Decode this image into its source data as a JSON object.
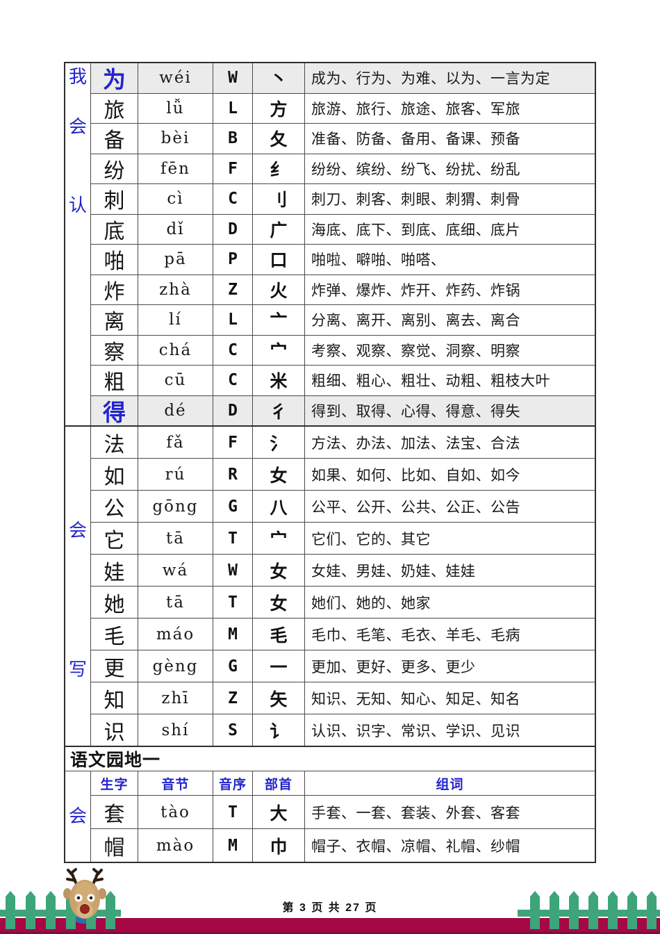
{
  "page": {
    "footer_text": "第 3 页 共 27 页"
  },
  "colors": {
    "accent_blue": "#2323CD",
    "highlight_row_bg": "#EBEBEB",
    "bottom_bar_crimson": "#A60845",
    "fence_green": "#3EA47A"
  },
  "table": {
    "columns": [
      "生字",
      "音节",
      "音序",
      "部首",
      "组词"
    ],
    "sections": [
      {
        "label": "我会认",
        "label_chars": [
          "我",
          "会",
          "认"
        ],
        "rows": [
          {
            "char": "为",
            "pinyin": "wéi",
            "initial": "W",
            "radical": "丶",
            "words": "成为、行为、为难、以为、一言为定",
            "hl": true
          },
          {
            "char": "旅",
            "pinyin": "lǚ",
            "initial": "L",
            "radical": "方",
            "words": "旅游、旅行、旅途、旅客、军旅"
          },
          {
            "char": "备",
            "pinyin": "bèi",
            "initial": "B",
            "radical": "夂",
            "words": "准备、防备、备用、备课、预备"
          },
          {
            "char": "纷",
            "pinyin": "fēn",
            "initial": "F",
            "radical": "纟",
            "words": "纷纷、缤纷、纷飞、纷扰、纷乱"
          },
          {
            "char": "刺",
            "pinyin": "cì",
            "initial": "C",
            "radical": "刂",
            "words": "刺刀、刺客、刺眼、刺猬、刺骨"
          },
          {
            "char": "底",
            "pinyin": "dǐ",
            "initial": "D",
            "radical": "广",
            "words": "海底、底下、到底、底细、底片"
          },
          {
            "char": "啪",
            "pinyin": "pā",
            "initial": "P",
            "radical": "口",
            "words": "啪啦、噼啪、啪嗒、"
          },
          {
            "char": "炸",
            "pinyin": "zhà",
            "initial": "Z",
            "radical": "火",
            "words": "炸弹、爆炸、炸开、炸药、炸锅"
          },
          {
            "char": "离",
            "pinyin": "lí",
            "initial": "L",
            "radical": "亠",
            "words": "分离、离开、离别、离去、离合"
          },
          {
            "char": "察",
            "pinyin": "chá",
            "initial": "C",
            "radical": "宀",
            "words": "考察、观察、察觉、洞察、明察"
          },
          {
            "char": "粗",
            "pinyin": "cū",
            "initial": "C",
            "radical": "米",
            "words": "粗细、粗心、粗壮、动粗、粗枝大叶"
          },
          {
            "char": "得",
            "pinyin": "dé",
            "initial": "D",
            "radical": "彳",
            "words": "得到、取得、心得、得意、得失",
            "hl": true
          }
        ]
      },
      {
        "label": "会写",
        "label_chars": [
          "会",
          "写"
        ],
        "rows": [
          {
            "char": "法",
            "pinyin": "fǎ",
            "initial": "F",
            "radical": "氵",
            "words": "方法、办法、加法、法宝、合法"
          },
          {
            "char": "如",
            "pinyin": "rú",
            "initial": "R",
            "radical": "女",
            "words": "如果、如何、比如、自如、如今"
          },
          {
            "char": "公",
            "pinyin": "gōng",
            "initial": "G",
            "radical": "八",
            "words": "公平、公开、公共、公正、公告"
          },
          {
            "char": "它",
            "pinyin": "tā",
            "initial": "T",
            "radical": "宀",
            "words": "它们、它的、其它"
          },
          {
            "char": "娃",
            "pinyin": "wá",
            "initial": "W",
            "radical": "女",
            "words": "女娃、男娃、奶娃、娃娃"
          },
          {
            "char": "她",
            "pinyin": "tā",
            "initial": "T",
            "radical": "女",
            "words": "她们、她的、她家"
          },
          {
            "char": "毛",
            "pinyin": "máo",
            "initial": "M",
            "radical": "毛",
            "words": "毛巾、毛笔、毛衣、羊毛、毛病"
          },
          {
            "char": "更",
            "pinyin": "gèng",
            "initial": "G",
            "radical": "一",
            "words": "更加、更好、更多、更少"
          },
          {
            "char": "知",
            "pinyin": "zhī",
            "initial": "Z",
            "radical": "矢",
            "words": "知识、无知、知心、知足、知名"
          },
          {
            "char": "识",
            "pinyin": "shí",
            "initial": "S",
            "radical": "讠",
            "words": "认识、识字、常识、学识、见识"
          }
        ]
      },
      {
        "label": "会",
        "label_chars": [
          "会"
        ],
        "rows": [
          {
            "char": "套",
            "pinyin": "tào",
            "initial": "T",
            "radical": "大",
            "words": "手套、一套、套装、外套、客套"
          },
          {
            "char": "帽",
            "pinyin": "mào",
            "initial": "M",
            "radical": "巾",
            "words": "帽子、衣帽、凉帽、礼帽、纱帽"
          }
        ]
      }
    ],
    "subheader": "语文园地一"
  },
  "decorations": {
    "reindeer": "reindeer-icon",
    "fence_left": "fence-icon",
    "fence_right": "fence-icon"
  }
}
